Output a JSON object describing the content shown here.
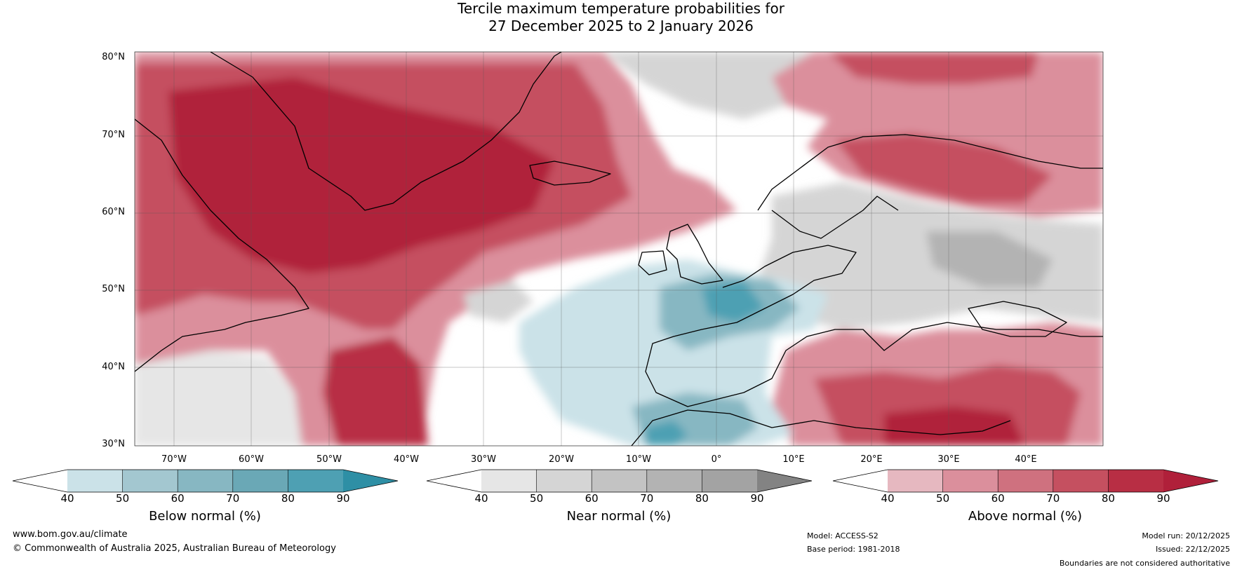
{
  "title": {
    "line1": "Tercile maximum temperature probabilities for",
    "line2": "27 December 2025 to 2 January 2026"
  },
  "map": {
    "lat_labels": [
      "80°N",
      "70°N",
      "60°N",
      "50°N",
      "40°N",
      "30°N"
    ],
    "lon_labels": [
      "70°W",
      "60°W",
      "50°W",
      "40°W",
      "30°W",
      "20°W",
      "10°W",
      "0°",
      "10°E",
      "20°E",
      "30°E",
      "40°E"
    ],
    "extent": {
      "lon_min": -75,
      "lon_max": 50,
      "lat_min": 30,
      "lat_max": 81
    }
  },
  "legends": [
    {
      "title": "Below normal (%)",
      "ticks": [
        "40",
        "50",
        "60",
        "70",
        "80",
        "90"
      ],
      "colors": [
        "#ffffff",
        "#cbe2e8",
        "#a3c7d0",
        "#87b7c2",
        "#6aa8b6",
        "#4ea0b3",
        "#2e8fa5"
      ]
    },
    {
      "title": "Near normal (%)",
      "ticks": [
        "40",
        "50",
        "60",
        "70",
        "80",
        "90"
      ],
      "colors": [
        "#ffffff",
        "#e6e6e6",
        "#d5d5d5",
        "#c3c3c3",
        "#b3b3b3",
        "#a3a3a3",
        "#838383"
      ]
    },
    {
      "title": "Above normal (%)",
      "ticks": [
        "40",
        "50",
        "60",
        "70",
        "80",
        "90"
      ],
      "colors": [
        "#ffffff",
        "#e6b8c0",
        "#db8f9c",
        "#cf717f",
        "#c55060",
        "#b82e44",
        "#b0203a"
      ]
    }
  ],
  "footer": {
    "website": "www.bom.gov.au/climate",
    "copyright": "© Commonwealth of Australia 2025, Australian Bureau of Meteorology",
    "model": "Model: ACCESS-S2",
    "base_period": "Base period: 1981-2018",
    "model_run": "Model run: 20/12/2025",
    "issued": "Issued: 22/12/2025",
    "disclaimer": "Boundaries are not considered authoritative"
  }
}
